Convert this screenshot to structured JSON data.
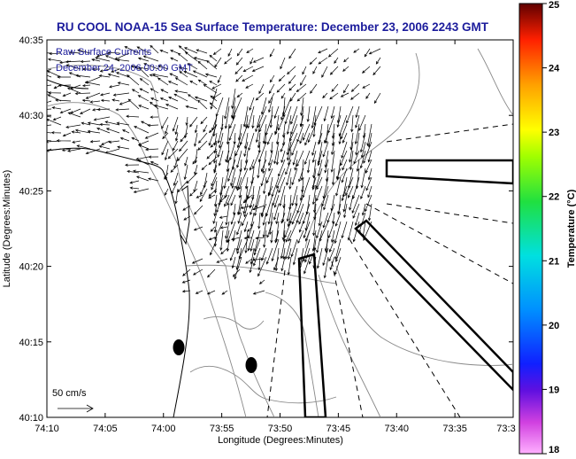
{
  "title": "RU COOL  NOAA-15  Sea Surface Temperature:  December 23, 2006 2243 GMT",
  "annotation": {
    "line1": "Raw Surface Currents",
    "line2": "December 24, 2006 00:00 GMT"
  },
  "scale_label": "50 cm/s",
  "colorbar": {
    "label": "Temperature (°C)",
    "ticks": [
      "25",
      "24",
      "23",
      "22",
      "21",
      "20",
      "19",
      "18"
    ]
  },
  "colors": {
    "title": "#1c1c9c",
    "contour": "#888888",
    "coast": "#000000"
  },
  "chart_data": {
    "type": "map",
    "title": "RU COOL  NOAA-15  Sea Surface Temperature:  December 23, 2006 2243 GMT",
    "xlabel": "Longitude (Degrees:Minutes)",
    "ylabel": "Latitude (Degrees:Minutes)",
    "x_ticks": [
      "74:10",
      "74:05",
      "74:00",
      "73:55",
      "73:50",
      "73:45",
      "73:40",
      "73:35",
      "73:3"
    ],
    "y_ticks": [
      "40:35",
      "40:30",
      "40:25",
      "40:20",
      "40:15",
      "40:10"
    ],
    "colorbar_range": [
      18,
      25
    ],
    "vector_scale": "50 cm/s"
  }
}
